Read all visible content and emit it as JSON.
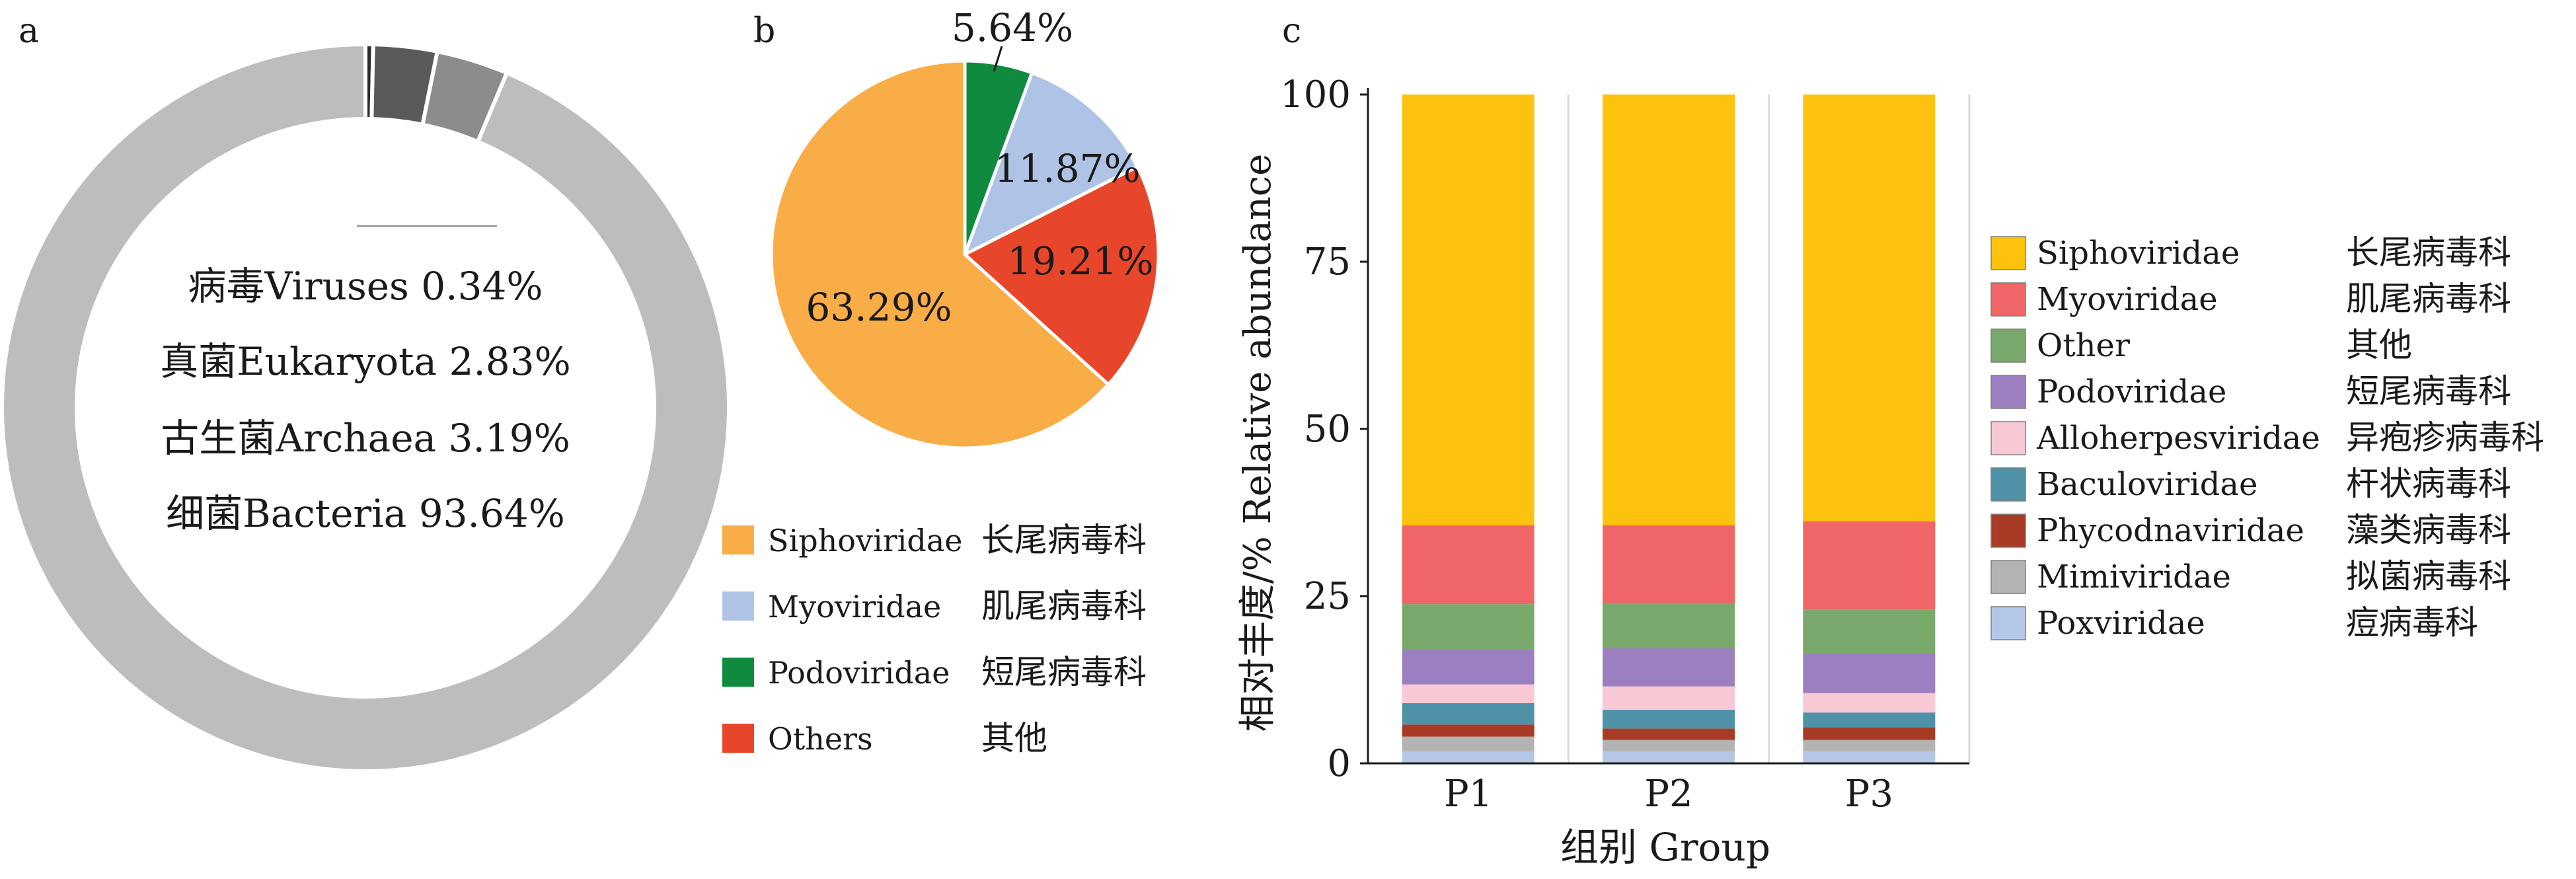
{
  "chart_data": [
    {
      "type": "pie",
      "panel_label": "a",
      "donut": true,
      "slices": [
        {
          "name": "病毒Viruses",
          "value": 0.34,
          "label": "病毒Viruses 0.34%",
          "color": "#2b2b2b"
        },
        {
          "name": "真菌Eukaryota",
          "value": 2.83,
          "label": "真菌Eukaryota 2.83%",
          "color": "#5a5a5a"
        },
        {
          "name": "古生菌Archaea",
          "value": 3.19,
          "label": "古生菌Archaea 3.19%",
          "color": "#8c8c8c"
        },
        {
          "name": "细菌Bacteria",
          "value": 93.64,
          "label": "细菌Bacteria 93.64%",
          "color": "#bdbdbd"
        }
      ]
    },
    {
      "type": "pie",
      "panel_label": "b",
      "slices": [
        {
          "name": "Siphoviridae",
          "value": 63.29,
          "label": "63.29%",
          "color": "#f9ad46"
        },
        {
          "name": "Myoviridae",
          "value": 11.87,
          "label": "11.87%",
          "color": "#aec3e6"
        },
        {
          "name": "Podoviridae",
          "value": 5.64,
          "label": "5.64%",
          "color": "#0f8a3f"
        },
        {
          "name": "Others",
          "value": 19.21,
          "label": "19.21%",
          "color": "#e8462b"
        }
      ],
      "legend": [
        {
          "en": "Siphoviridae",
          "zh": "长尾病毒科",
          "color": "#f9ad46"
        },
        {
          "en": "Myoviridae",
          "zh": "肌尾病毒科",
          "color": "#aec3e6"
        },
        {
          "en": "Podoviridae",
          "zh": "短尾病毒科",
          "color": "#0f8a3f"
        },
        {
          "en": "Others",
          "zh": "其他",
          "color": "#e8462b"
        }
      ],
      "legend_position": "bottom"
    },
    {
      "type": "bar",
      "stacked": true,
      "panel_label": "c",
      "xlabel": "组别 Group",
      "ylabel": "相对丰度/% Relative abundance",
      "ylim": [
        0,
        100
      ],
      "yticks": [
        0,
        25,
        50,
        75,
        100
      ],
      "categories": [
        "P1",
        "P2",
        "P3"
      ],
      "series": [
        {
          "name": "Poxviridae",
          "zh": "痘病毒科",
          "color": "#b4c7e7",
          "values": [
            1.8,
            1.8,
            1.8
          ]
        },
        {
          "name": "Mimiviridae",
          "zh": "拟菌病毒科",
          "color": "#b3b3b3",
          "values": [
            2.2,
            1.7,
            1.7
          ]
        },
        {
          "name": "Phycodnaviridae",
          "zh": "藻类病毒科",
          "color": "#a93a26",
          "values": [
            1.8,
            1.7,
            1.9
          ]
        },
        {
          "name": "Baculoviridae",
          "zh": "杆状病毒科",
          "color": "#4f92a8",
          "values": [
            3.2,
            2.8,
            2.2
          ]
        },
        {
          "name": "Alloherpesviridae",
          "zh": "异疱疹病毒科",
          "color": "#f8c8d4",
          "values": [
            2.8,
            3.5,
            2.9
          ]
        },
        {
          "name": "Podoviridae",
          "zh": "短尾病毒科",
          "color": "#9b7fc0",
          "values": [
            5.2,
            5.7,
            6.0
          ]
        },
        {
          "name": "Other",
          "zh": "其他",
          "color": "#78a96a",
          "values": [
            6.8,
            6.8,
            6.5
          ]
        },
        {
          "name": "Myoviridae",
          "zh": "肌尾病毒科",
          "color": "#f06666",
          "values": [
            11.8,
            11.6,
            13.2
          ]
        },
        {
          "name": "Siphoviridae",
          "zh": "长尾病毒科",
          "color": "#fdc20d",
          "values": [
            64.4,
            64.4,
            63.8
          ]
        }
      ],
      "legend": [
        {
          "en": "Siphoviridae",
          "zh": "长尾病毒科",
          "color": "#fdc20d"
        },
        {
          "en": "Myoviridae",
          "zh": "肌尾病毒科",
          "color": "#f06666"
        },
        {
          "en": "Other",
          "zh": "其他",
          "color": "#78a96a"
        },
        {
          "en": "Podoviridae",
          "zh": "短尾病毒科",
          "color": "#9b7fc0"
        },
        {
          "en": "Alloherpesviridae",
          "zh": "异疱疹病毒科",
          "color": "#f8c8d4"
        },
        {
          "en": "Baculoviridae",
          "zh": "杆状病毒科",
          "color": "#4f92a8"
        },
        {
          "en": "Phycodnaviridae",
          "zh": "藻类病毒科",
          "color": "#a93a26"
        },
        {
          "en": "Mimiviridae",
          "zh": "拟菌病毒科",
          "color": "#b3b3b3"
        },
        {
          "en": "Poxviridae",
          "zh": "痘病毒科",
          "color": "#b4c7e7"
        }
      ],
      "legend_position": "right"
    }
  ]
}
